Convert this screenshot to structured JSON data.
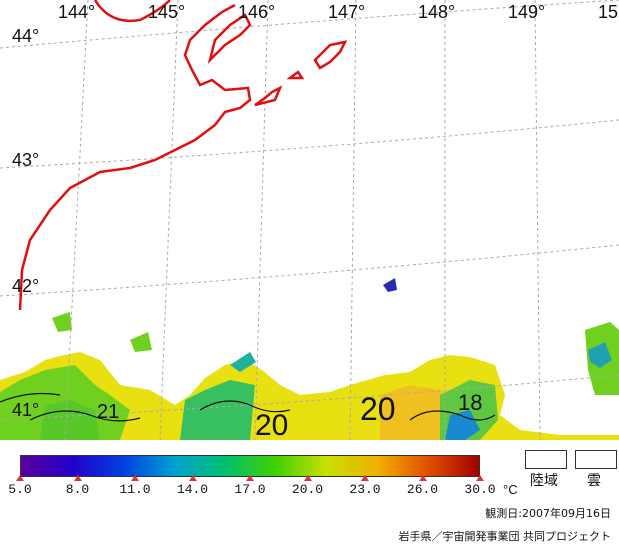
{
  "map": {
    "lon_labels": [
      "144°",
      "145°",
      "146°",
      "147°",
      "148°",
      "149°",
      "15"
    ],
    "lat_labels": [
      "44°",
      "43°",
      "42°",
      "41°"
    ],
    "contour_labels": [
      "21",
      "20",
      "20",
      "18"
    ]
  },
  "colorbar": {
    "ticks": [
      "5.0",
      "8.0",
      "11.0",
      "14.0",
      "17.0",
      "20.0",
      "23.0",
      "26.0",
      "30.0"
    ],
    "unit": "°C",
    "colors": [
      "#5a00a0",
      "#2200c8",
      "#0040e0",
      "#00a0d0",
      "#00c070",
      "#40d000",
      "#c8e000",
      "#f0b000",
      "#e05000",
      "#a00000"
    ]
  },
  "legend": {
    "land_label": "陸域",
    "cloud_label": "雲"
  },
  "observation_date": "観測日:2007年09月16日",
  "credit": "岩手県／宇宙開発事業団 共同プロジェクト"
}
